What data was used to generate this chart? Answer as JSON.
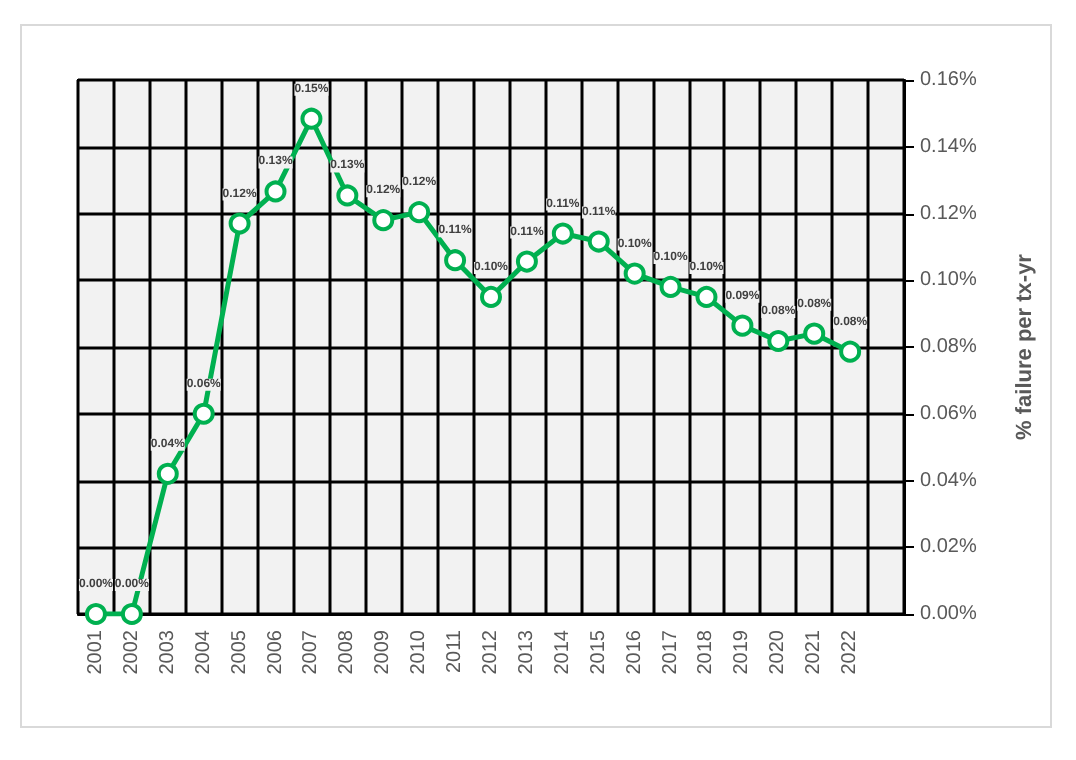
{
  "chart_data": {
    "type": "line",
    "ylabel": "% failure per tx-yr",
    "categories": [
      "2001",
      "2002",
      "2003",
      "2004",
      "2005",
      "2006",
      "2007",
      "2008",
      "2009",
      "2010",
      "2011",
      "2012",
      "2013",
      "2014",
      "2015",
      "2016",
      "2017",
      "2018",
      "2019",
      "2020",
      "2021",
      "2022",
      null
    ],
    "series": [
      {
        "color": "#00b050",
        "values": [
          0,
          0,
          0.042,
          0.06,
          0.117,
          0.1266,
          0.1484,
          0.1254,
          0.118,
          0.1204,
          0.106,
          0.095,
          0.1056,
          0.114,
          0.1116,
          0.102,
          0.098,
          0.095,
          0.0864,
          0.0818,
          0.084,
          0.0786,
          null
        ],
        "value_labels": [
          "0.00%",
          "0.00%",
          "0.04%",
          "0.06%",
          "0.12%",
          "0.13%",
          "0.15%",
          "0.13%",
          "0.12%",
          "0.12%",
          "0.11%",
          "0.10%",
          "0.11%",
          "0.11%",
          "0.11%",
          "0.10%",
          "0.10%",
          "0.10%",
          "0.09%",
          "0.08%",
          "0.08%",
          "0.08%",
          null
        ]
      }
    ],
    "ylim": [
      0,
      0.16
    ],
    "yticks": [
      {
        "value": 0,
        "label": "0.00%"
      },
      {
        "value": 0.02,
        "label": "0.02%"
      },
      {
        "value": 0.04,
        "label": "0.04%"
      },
      {
        "value": 0.06,
        "label": "0.06%"
      },
      {
        "value": 0.08,
        "label": "0.08%"
      },
      {
        "value": 0.1,
        "label": "0.10%"
      },
      {
        "value": 0.12,
        "label": "0.12%"
      },
      {
        "value": 0.14,
        "label": "0.14%"
      },
      {
        "value": 0.16,
        "label": "0.16%"
      }
    ],
    "grid": true,
    "marker": "circle",
    "line_style": "solid"
  }
}
